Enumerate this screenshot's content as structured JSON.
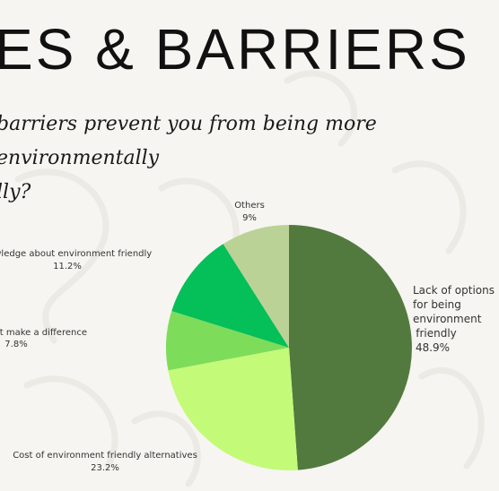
{
  "heading": "ES & BARRIERS",
  "question_lines": [
    "barriers prevent you from being more environmentally",
    "lly?"
  ],
  "chart_data": {
    "type": "pie",
    "start_angle_deg": 0,
    "direction": "clockwise",
    "slices": [
      {
        "label_lines": [
          "Lack of options",
          "for being",
          "environment",
          "friendly"
        ],
        "value": 48.9,
        "display": "48.9%",
        "color": "#527a3e"
      },
      {
        "label_lines": [
          "Cost of environment friendly alternatives"
        ],
        "value": 23.2,
        "display": "23.2%",
        "color": "#c3fa78"
      },
      {
        "label_lines": [
          "actions don't make a difference"
        ],
        "value": 7.8,
        "display": "7.8%",
        "color": "#7ddc5a"
      },
      {
        "label_lines": [
          "nowledge about environment friendly"
        ],
        "value": 11.2,
        "display": "11.2%",
        "color": "#05bf58"
      },
      {
        "label_lines": [
          "Others"
        ],
        "value": 9,
        "display": "9%",
        "color": "#bbd296"
      }
    ]
  }
}
